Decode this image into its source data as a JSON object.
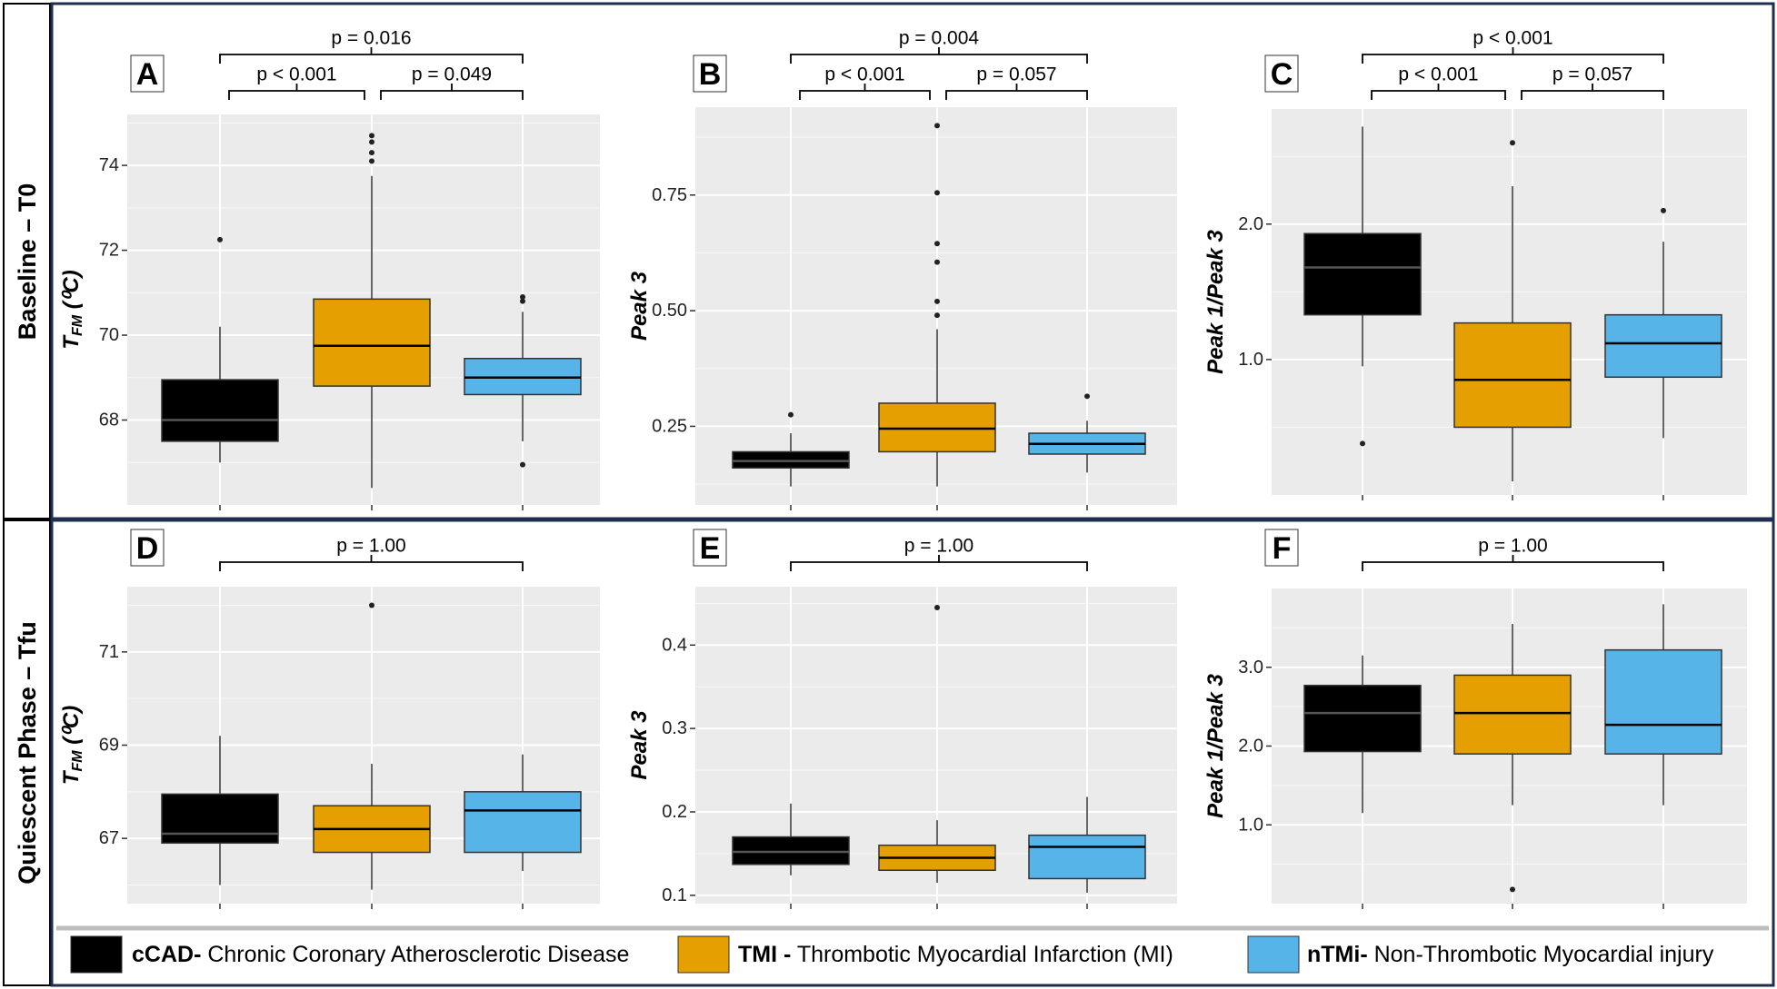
{
  "rows": [
    {
      "label": "Baseline – T0"
    },
    {
      "label": "Quiescent Phase – Tfu"
    }
  ],
  "colors": {
    "cCAD": "#000000",
    "TMI": "#E69F00",
    "nTMi": "#56B4E9",
    "frame": "#1f2d4e",
    "panel_bg": "#EBEBEB"
  },
  "legend": [
    {
      "abbr": "cCAD-",
      "text": " Chronic Coronary Atherosclerotic Disease",
      "color": "#000000"
    },
    {
      "abbr": "TMI -",
      "text": " Thrombotic Myocardial Infarction (MI)",
      "color": "#E69F00"
    },
    {
      "abbr": "nTMi-",
      "text": " Non-Thrombotic Myocardial injury",
      "color": "#56B4E9"
    }
  ],
  "chart_data": [
    {
      "type": "box",
      "panel": "A",
      "row": 0,
      "ylabel": "T",
      "ylabel_sub": "FM",
      "ylabel_unit": " (⁰C)",
      "ylim": [
        66.0,
        75.2
      ],
      "yticks": [
        68,
        70,
        72,
        74
      ],
      "tick_labels": [
        "68",
        "70",
        "72",
        "74"
      ],
      "categories": [
        "cCAD",
        "TMI",
        "nTMi"
      ],
      "series": [
        {
          "name": "cCAD",
          "whisker_low": 67.0,
          "q1": 67.5,
          "median": 68.0,
          "q3": 68.95,
          "whisker_high": 70.2,
          "outliers": [
            72.25
          ]
        },
        {
          "name": "TMI",
          "whisker_low": 66.4,
          "q1": 68.8,
          "median": 69.75,
          "q3": 70.85,
          "whisker_high": 73.75,
          "outliers": [
            74.1,
            74.3,
            74.55,
            74.7
          ]
        },
        {
          "name": "nTMi",
          "whisker_low": 67.5,
          "q1": 68.6,
          "median": 69.0,
          "q3": 69.45,
          "whisker_high": 70.55,
          "outliers": [
            70.8,
            70.9,
            66.95
          ]
        }
      ],
      "comparisons": [
        {
          "from": 0,
          "to": 2,
          "label": "p = 0.016",
          "level": 2
        },
        {
          "from": 0,
          "to": 1,
          "label": "p < 0.001",
          "level": 1
        },
        {
          "from": 1,
          "to": 2,
          "label": "p = 0.049",
          "level": 1
        }
      ]
    },
    {
      "type": "box",
      "panel": "B",
      "row": 0,
      "ylabel": "Peak 3",
      "ylabel_sub": "",
      "ylabel_unit": "",
      "ylim": [
        0.08,
        0.94
      ],
      "yticks": [
        0.25,
        0.5,
        0.75
      ],
      "tick_labels": [
        "0.25",
        "0.50",
        "0.75"
      ],
      "categories": [
        "cCAD",
        "TMI",
        "nTMi"
      ],
      "series": [
        {
          "name": "cCAD",
          "whisker_low": 0.12,
          "q1": 0.16,
          "median": 0.175,
          "q3": 0.195,
          "whisker_high": 0.235,
          "outliers": [
            0.275
          ]
        },
        {
          "name": "TMI",
          "whisker_low": 0.12,
          "q1": 0.195,
          "median": 0.245,
          "q3": 0.3,
          "whisker_high": 0.46,
          "outliers": [
            0.49,
            0.52,
            0.605,
            0.645,
            0.755,
            0.9
          ]
        },
        {
          "name": "nTMi",
          "whisker_low": 0.15,
          "q1": 0.19,
          "median": 0.212,
          "q3": 0.235,
          "whisker_high": 0.262,
          "outliers": [
            0.315
          ]
        }
      ],
      "comparisons": [
        {
          "from": 0,
          "to": 2,
          "label": "p = 0.004",
          "level": 2
        },
        {
          "from": 0,
          "to": 1,
          "label": "p < 0.001",
          "level": 1
        },
        {
          "from": 1,
          "to": 2,
          "label": "p = 0.057",
          "level": 1
        }
      ]
    },
    {
      "type": "box",
      "panel": "C",
      "row": 0,
      "ylabel": "Peak 1/Peak 3",
      "ylabel_sub": "",
      "ylabel_unit": "",
      "ylim": [
        0.0,
        2.85
      ],
      "yticks": [
        1.0,
        2.0
      ],
      "tick_labels": [
        "1.0",
        "2.0"
      ],
      "categories": [
        "cCAD",
        "TMI",
        "nTMi"
      ],
      "series": [
        {
          "name": "cCAD",
          "whisker_low": 0.95,
          "q1": 1.33,
          "median": 1.68,
          "q3": 1.93,
          "whisker_high": 2.72,
          "outliers": [
            0.38
          ]
        },
        {
          "name": "TMI",
          "whisker_low": 0.1,
          "q1": 0.5,
          "median": 0.85,
          "q3": 1.27,
          "whisker_high": 2.28,
          "outliers": [
            2.6
          ]
        },
        {
          "name": "nTMi",
          "whisker_low": 0.42,
          "q1": 0.87,
          "median": 1.12,
          "q3": 1.33,
          "whisker_high": 1.87,
          "outliers": [
            2.1
          ]
        }
      ],
      "comparisons": [
        {
          "from": 0,
          "to": 2,
          "label": "p < 0.001",
          "level": 2
        },
        {
          "from": 0,
          "to": 1,
          "label": "p < 0.001",
          "level": 1
        },
        {
          "from": 1,
          "to": 2,
          "label": "p = 0.057",
          "level": 1
        }
      ]
    },
    {
      "type": "box",
      "panel": "D",
      "row": 1,
      "ylabel": "T",
      "ylabel_sub": "FM",
      "ylabel_unit": " (⁰C)",
      "ylim": [
        65.6,
        72.4
      ],
      "yticks": [
        67,
        69,
        71
      ],
      "tick_labels": [
        "67",
        "69",
        "71"
      ],
      "categories": [
        "cCAD",
        "TMI",
        "nTMi"
      ],
      "series": [
        {
          "name": "cCAD",
          "whisker_low": 66.0,
          "q1": 66.9,
          "median": 67.1,
          "q3": 67.95,
          "whisker_high": 69.2,
          "outliers": []
        },
        {
          "name": "TMI",
          "whisker_low": 65.9,
          "q1": 66.7,
          "median": 67.2,
          "q3": 67.7,
          "whisker_high": 68.6,
          "outliers": [
            72.0
          ]
        },
        {
          "name": "nTMi",
          "whisker_low": 66.3,
          "q1": 66.7,
          "median": 67.6,
          "q3": 68.0,
          "whisker_high": 68.8,
          "outliers": []
        }
      ],
      "comparisons": [
        {
          "from": 0,
          "to": 2,
          "label": "p = 1.00",
          "level": 1
        }
      ]
    },
    {
      "type": "box",
      "panel": "E",
      "row": 1,
      "ylabel": "Peak 3",
      "ylabel_sub": "",
      "ylabel_unit": "",
      "ylim": [
        0.09,
        0.47
      ],
      "yticks": [
        0.1,
        0.2,
        0.3,
        0.4
      ],
      "tick_labels": [
        "0.1",
        "0.2",
        "0.3",
        "0.4"
      ],
      "categories": [
        "cCAD",
        "TMI",
        "nTMi"
      ],
      "series": [
        {
          "name": "cCAD",
          "whisker_low": 0.124,
          "q1": 0.137,
          "median": 0.152,
          "q3": 0.17,
          "whisker_high": 0.21,
          "outliers": []
        },
        {
          "name": "TMI",
          "whisker_low": 0.115,
          "q1": 0.13,
          "median": 0.145,
          "q3": 0.16,
          "whisker_high": 0.19,
          "outliers": [
            0.445
          ]
        },
        {
          "name": "nTMi",
          "whisker_low": 0.103,
          "q1": 0.12,
          "median": 0.158,
          "q3": 0.172,
          "whisker_high": 0.218,
          "outliers": []
        }
      ],
      "comparisons": [
        {
          "from": 0,
          "to": 2,
          "label": "p = 1.00",
          "level": 1
        }
      ]
    },
    {
      "type": "box",
      "panel": "F",
      "row": 1,
      "ylabel": "Peak 1/Peak 3",
      "ylabel_sub": "",
      "ylabel_unit": "",
      "ylim": [
        0.0,
        4.0
      ],
      "yticks": [
        1.0,
        2.0,
        3.0
      ],
      "tick_labels": [
        "1.0",
        "2.0",
        "3.0"
      ],
      "categories": [
        "cCAD",
        "TMI",
        "nTMi"
      ],
      "series": [
        {
          "name": "cCAD",
          "whisker_low": 1.15,
          "q1": 1.93,
          "median": 2.42,
          "q3": 2.77,
          "whisker_high": 3.15,
          "outliers": []
        },
        {
          "name": "TMI",
          "whisker_low": 1.25,
          "q1": 1.9,
          "median": 2.42,
          "q3": 2.9,
          "whisker_high": 3.55,
          "outliers": [
            0.18
          ]
        },
        {
          "name": "nTMi",
          "whisker_low": 1.25,
          "q1": 1.9,
          "median": 2.27,
          "q3": 3.22,
          "whisker_high": 3.8,
          "outliers": []
        }
      ],
      "comparisons": [
        {
          "from": 0,
          "to": 2,
          "label": "p = 1.00",
          "level": 1
        }
      ]
    }
  ]
}
